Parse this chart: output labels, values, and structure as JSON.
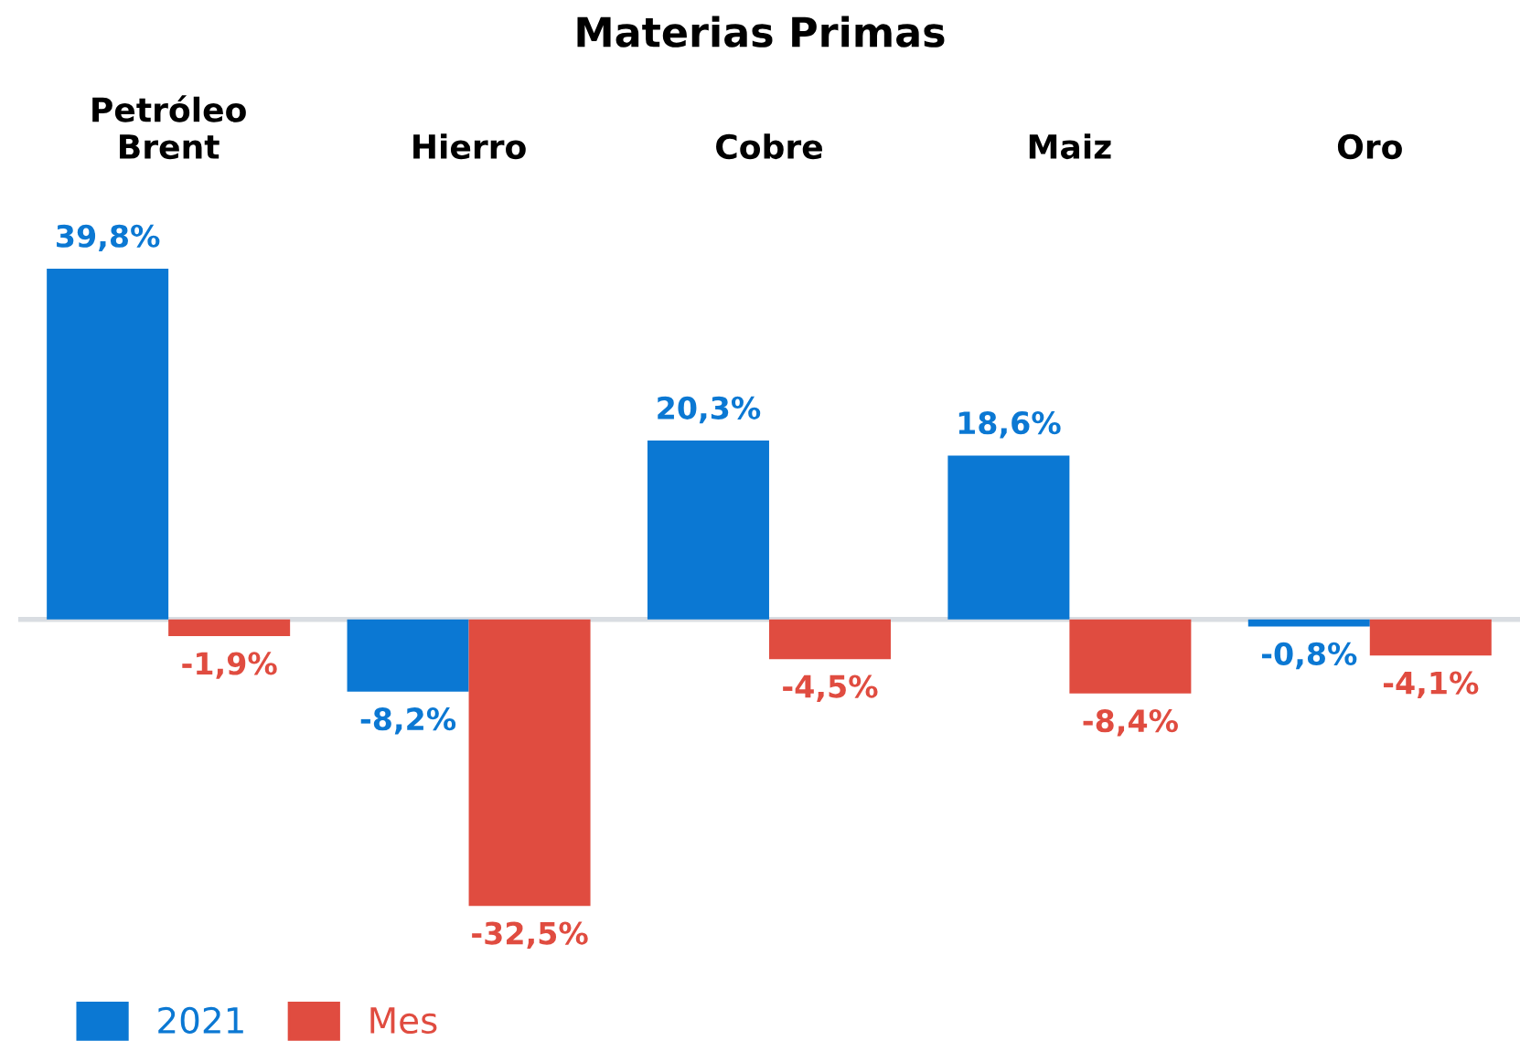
{
  "chart_data": {
    "type": "bar",
    "title": "Materias Primas",
    "categories": [
      "Petróleo\nBrent",
      "Hierro",
      "Cobre",
      "Maiz",
      "Oro"
    ],
    "series": [
      {
        "name": "2021",
        "color": "#0b78d3",
        "values": [
          39.8,
          -8.2,
          20.3,
          18.6,
          -0.8
        ],
        "value_labels": [
          "39,8%",
          "-8,2%",
          "20,3%",
          "18,6%",
          "-0,8%"
        ]
      },
      {
        "name": "Mes",
        "color": "#e04c40",
        "values": [
          -1.9,
          -32.5,
          -4.5,
          -8.4,
          -4.1
        ],
        "value_labels": [
          "-1,9%",
          "-32,5%",
          "-4,5%",
          "-8,4%",
          "-4,1%"
        ]
      }
    ],
    "legend": "bottom left",
    "grid": false
  }
}
